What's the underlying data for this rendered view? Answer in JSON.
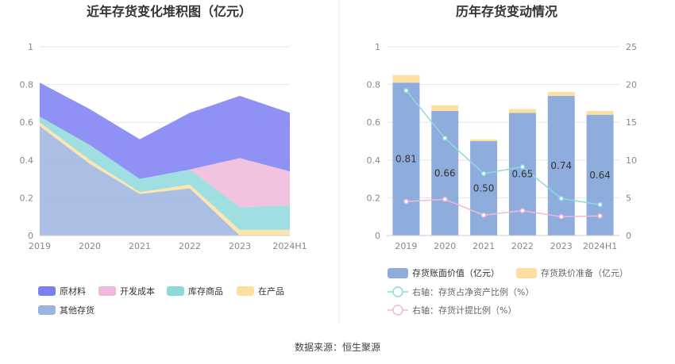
{
  "colors": {
    "raw_material": "#7b7ff2",
    "dev_cost": "#f0b8da",
    "stock_goods": "#8ed9dc",
    "in_production": "#fde0a0",
    "other": "#9cb4e0",
    "bar_value": "#8eaddc",
    "bar_impairment": "#fde0a0",
    "line_ratio": "#8ed9dc",
    "line_provision": "#f0b8da",
    "axis_text": "#888888",
    "title_text": "#333333"
  },
  "source_label": "数据来源：恒生聚源",
  "chart_data": [
    {
      "type": "area",
      "stacked": true,
      "title": "近年存货变化堆积图（亿元）",
      "x": [
        "2019",
        "2020",
        "2021",
        "2022",
        "2023",
        "2024H1"
      ],
      "ylim": [
        0,
        1
      ],
      "yticks": [
        "0",
        "0.2",
        "0.4",
        "0.6",
        "0.8",
        "1"
      ],
      "grid": true,
      "legend_position": "bottom",
      "series": [
        {
          "name": "其他存货",
          "color_key": "other",
          "values": [
            0.58,
            0.38,
            0.22,
            0.25,
            0.0,
            0.0
          ]
        },
        {
          "name": "在产品",
          "color_key": "in_production",
          "values": [
            0.02,
            0.02,
            0.01,
            0.02,
            0.03,
            0.03
          ]
        },
        {
          "name": "库存商品",
          "color_key": "stock_goods",
          "values": [
            0.03,
            0.08,
            0.07,
            0.08,
            0.12,
            0.13
          ]
        },
        {
          "name": "开发成本",
          "color_key": "dev_cost",
          "values": [
            0.0,
            0.0,
            0.0,
            0.0,
            0.26,
            0.18
          ]
        },
        {
          "name": "原材料",
          "color_key": "raw_material",
          "values": [
            0.18,
            0.19,
            0.21,
            0.3,
            0.33,
            0.31
          ]
        }
      ],
      "legend": [
        {
          "name": "原材料",
          "color_key": "raw_material"
        },
        {
          "name": "开发成本",
          "color_key": "dev_cost"
        },
        {
          "name": "库存商品",
          "color_key": "stock_goods"
        },
        {
          "name": "在产品",
          "color_key": "in_production"
        },
        {
          "name": "其他存货",
          "color_key": "other"
        }
      ]
    },
    {
      "type": "bar",
      "stacked": true,
      "title": "历年存货变动情况",
      "categories": [
        "2019",
        "2020",
        "2021",
        "2022",
        "2023",
        "2024H1"
      ],
      "ylim": [
        0,
        1
      ],
      "yticks": [
        "0",
        "0.2",
        "0.4",
        "0.6",
        "0.8",
        "1"
      ],
      "y2lim": [
        0,
        25
      ],
      "y2ticks": [
        "0",
        "5",
        "10",
        "15",
        "20",
        "25"
      ],
      "grid": true,
      "legend_position": "bottom",
      "series": [
        {
          "name": "存货账面价值（亿元）",
          "kind": "bar",
          "axis": "left",
          "color_key": "bar_value",
          "values": [
            0.81,
            0.66,
            0.5,
            0.65,
            0.74,
            0.64
          ],
          "labels": [
            "0.81",
            "0.66",
            "0.50",
            "0.65",
            "0.74",
            "0.64"
          ]
        },
        {
          "name": "存货跌价准备（亿元）",
          "kind": "bar",
          "axis": "left",
          "color_key": "bar_impairment",
          "values": [
            0.04,
            0.03,
            0.01,
            0.02,
            0.02,
            0.02
          ]
        },
        {
          "name": "右轴：存货占净资产比例（%）",
          "kind": "line",
          "axis": "right",
          "color_key": "line_ratio",
          "values": [
            19.2,
            12.9,
            8.2,
            9.1,
            4.9,
            4.1
          ]
        },
        {
          "name": "右轴：存货计提比例（%）",
          "kind": "line",
          "axis": "right",
          "color_key": "line_provision",
          "values": [
            4.5,
            4.8,
            2.7,
            3.3,
            2.5,
            2.6
          ]
        }
      ]
    }
  ]
}
